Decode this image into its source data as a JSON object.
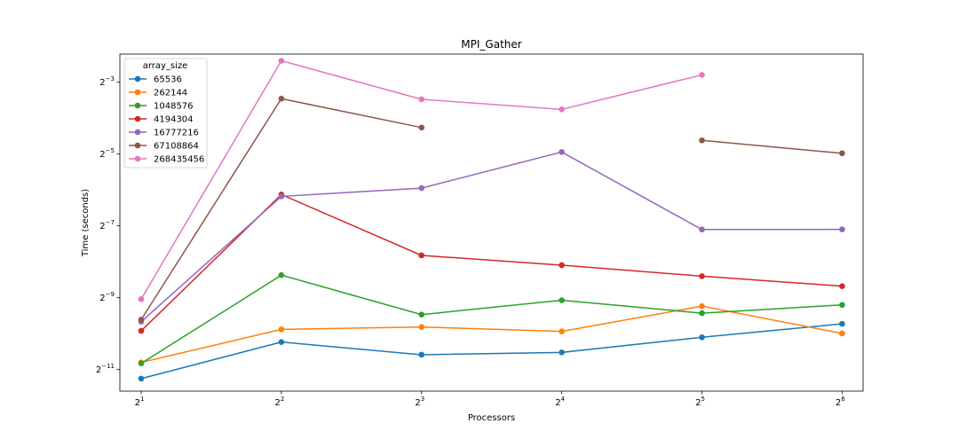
{
  "chart_data": {
    "type": "line",
    "title": "MPI_Gather",
    "xlabel": "Processors",
    "ylabel": "Time (seconds)",
    "x_scale": "log2",
    "y_scale": "log2",
    "x": [
      2,
      4,
      8,
      16,
      32,
      64
    ],
    "x_tick_labels": [
      {
        "base": "2",
        "exp": "1"
      },
      {
        "base": "2",
        "exp": "2"
      },
      {
        "base": "2",
        "exp": "3"
      },
      {
        "base": "2",
        "exp": "4"
      },
      {
        "base": "2",
        "exp": "5"
      },
      {
        "base": "2",
        "exp": "6"
      }
    ],
    "y_tick_labels": [
      {
        "base": "2",
        "exp": "−11",
        "log2": -11
      },
      {
        "base": "2",
        "exp": "−9",
        "log2": -9
      },
      {
        "base": "2",
        "exp": "−7",
        "log2": -7
      },
      {
        "base": "2",
        "exp": "−5",
        "log2": -5
      },
      {
        "base": "2",
        "exp": "−3",
        "log2": -3
      }
    ],
    "xlim": [
      1.8,
      71
    ],
    "ylim": [
      0.000322,
      0.215
    ],
    "grid": false,
    "legend_title": "array_size",
    "legend_position": "top-left",
    "series": [
      {
        "name": "65536",
        "color": "#1f77b4",
        "values": [
          0.00041,
          0.00083,
          0.00065,
          0.00068,
          0.00091,
          0.00118
        ]
      },
      {
        "name": "262144",
        "color": "#ff7f0e",
        "values": [
          0.00056,
          0.00106,
          0.00111,
          0.00102,
          0.00166,
          0.00098
        ]
      },
      {
        "name": "1048576",
        "color": "#2ca02c",
        "values": [
          0.00055,
          0.00302,
          0.00141,
          0.00186,
          0.00145,
          0.0017
        ]
      },
      {
        "name": "4194304",
        "color": "#d62728",
        "values": [
          0.00103,
          0.0143,
          0.00442,
          0.00366,
          0.00296,
          0.00244
        ]
      },
      {
        "name": "16777216",
        "color": "#9467bd",
        "values": [
          0.00123,
          0.0138,
          0.0162,
          0.0325,
          0.00728,
          0.0073
        ]
      },
      {
        "name": "67108864",
        "color": "#8c564b",
        "values": [
          0.00128,
          0.091,
          0.0521,
          null,
          0.0407,
          0.0317
        ]
      },
      {
        "name": "268435456",
        "color": "#e377c2",
        "values": [
          0.0019,
          0.189,
          0.0899,
          0.074,
          0.144,
          null
        ]
      }
    ]
  }
}
